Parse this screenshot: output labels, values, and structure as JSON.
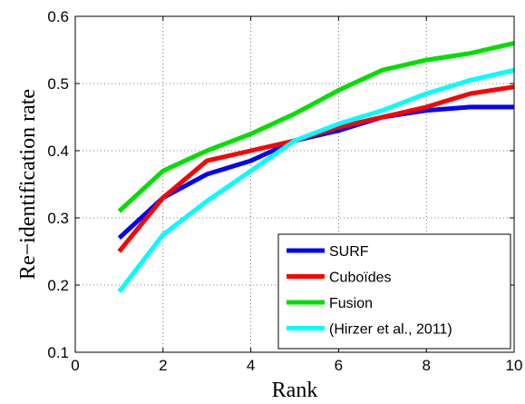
{
  "chart_data": {
    "type": "line",
    "xlabel": "Rank",
    "ylabel": "Re−identification rate",
    "xlim": [
      0,
      10
    ],
    "ylim": [
      0.1,
      0.6
    ],
    "xticks": [
      0,
      2,
      4,
      6,
      8,
      10
    ],
    "yticks": [
      0.1,
      0.2,
      0.3,
      0.4,
      0.5,
      0.6
    ],
    "xtick_labels": [
      "0",
      "2",
      "4",
      "6",
      "8",
      "10"
    ],
    "ytick_labels": [
      "0.1",
      "0.2",
      "0.3",
      "0.4",
      "0.5",
      "0.6"
    ],
    "grid": true,
    "legend_position": "bottom-right",
    "x": [
      1,
      2,
      3,
      4,
      5,
      6,
      7,
      8,
      9,
      10
    ],
    "series": [
      {
        "name": "SURF",
        "color": "#0000ff",
        "values": [
          0.27,
          0.33,
          0.365,
          0.385,
          0.415,
          0.43,
          0.45,
          0.46,
          0.465,
          0.465
        ]
      },
      {
        "name": "Cuboïdes",
        "color": "#ff0000",
        "values": [
          0.25,
          0.33,
          0.385,
          0.4,
          0.415,
          0.435,
          0.45,
          0.465,
          0.485,
          0.495
        ]
      },
      {
        "name": "Fusion",
        "color": "#00e000",
        "values": [
          0.31,
          0.37,
          0.4,
          0.425,
          0.455,
          0.49,
          0.52,
          0.535,
          0.545,
          0.56
        ]
      },
      {
        "name": "(Hirzer et al., 2011)",
        "color": "#00ffff",
        "values": [
          0.19,
          0.275,
          0.325,
          0.37,
          0.415,
          0.44,
          0.46,
          0.485,
          0.505,
          0.52
        ]
      }
    ]
  }
}
